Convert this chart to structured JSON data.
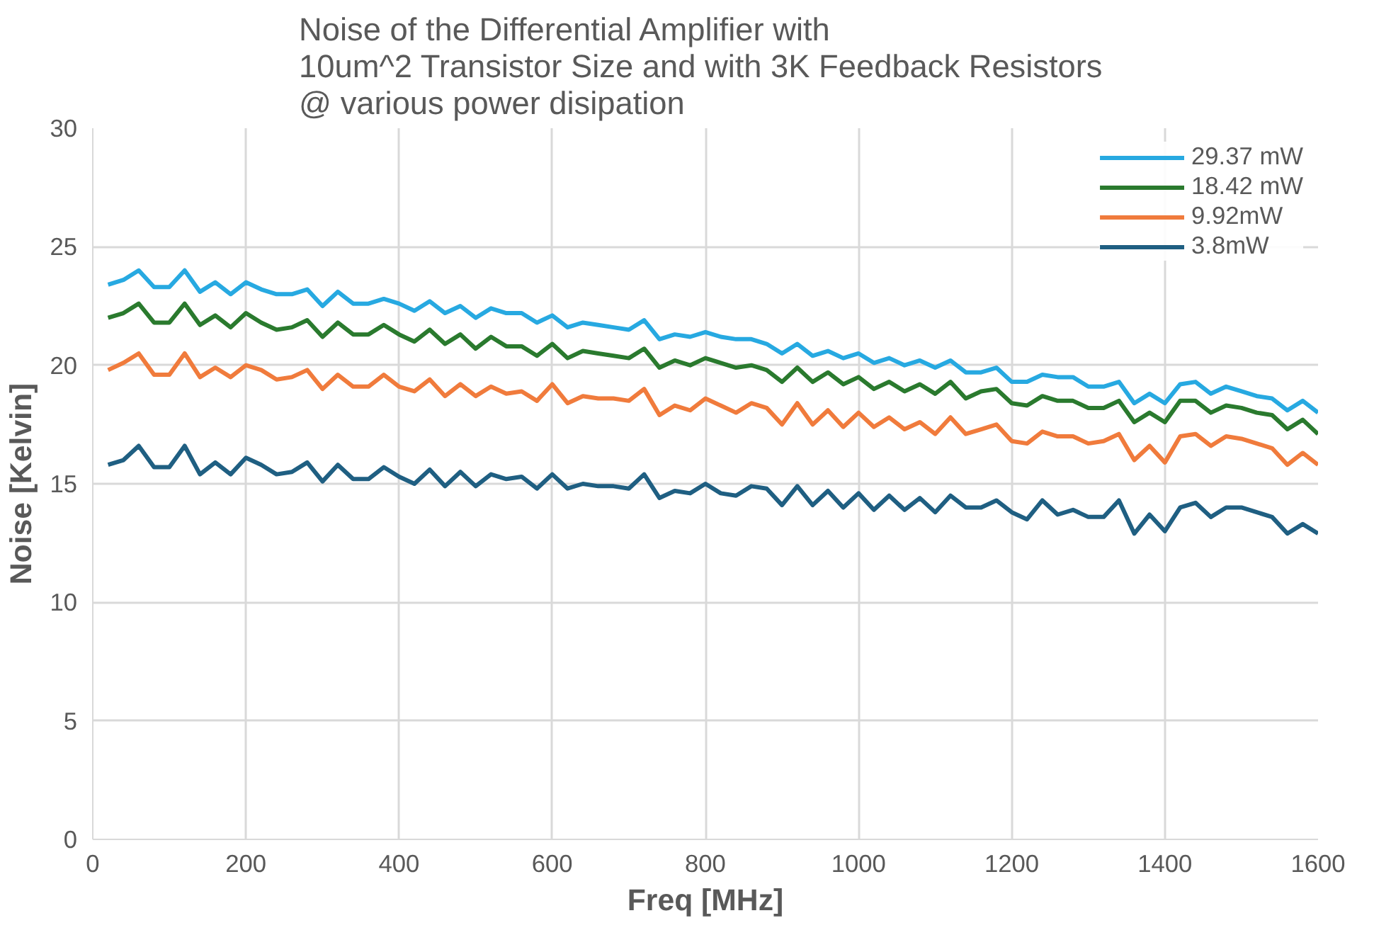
{
  "chart_data": {
    "type": "line",
    "title": "Noise of the Differential Amplifier with\n10um^2 Transistor Size and  with 3K Feedback Resistors\n@ various power disipation",
    "xlabel": "Freq [MHz]",
    "ylabel": "Noise [Kelvin]",
    "x": [
      20,
      40,
      60,
      80,
      100,
      120,
      140,
      160,
      180,
      200,
      220,
      240,
      260,
      280,
      300,
      320,
      340,
      360,
      380,
      400,
      420,
      440,
      460,
      480,
      500,
      520,
      540,
      560,
      580,
      600,
      620,
      640,
      660,
      680,
      700,
      720,
      740,
      760,
      780,
      800,
      820,
      840,
      860,
      880,
      900,
      920,
      940,
      960,
      980,
      1000,
      1020,
      1040,
      1060,
      1080,
      1100,
      1120,
      1140,
      1160,
      1180,
      1200,
      1220,
      1240,
      1260,
      1280,
      1300,
      1320,
      1340,
      1360,
      1380,
      1400,
      1420,
      1440,
      1460,
      1480,
      1500,
      1520,
      1540,
      1560,
      1580,
      1600
    ],
    "series": [
      {
        "name": "29.37 mW",
        "color": "#27a9e1",
        "values": [
          23.4,
          23.6,
          24.0,
          23.3,
          23.3,
          24.0,
          23.1,
          23.5,
          23.0,
          23.5,
          23.2,
          23.0,
          23.0,
          23.2,
          22.5,
          23.1,
          22.6,
          22.6,
          22.8,
          22.6,
          22.3,
          22.7,
          22.2,
          22.5,
          22.0,
          22.4,
          22.2,
          22.2,
          21.8,
          22.1,
          21.6,
          21.8,
          21.7,
          21.6,
          21.5,
          21.9,
          21.1,
          21.3,
          21.2,
          21.4,
          21.2,
          21.1,
          21.1,
          20.9,
          20.5,
          20.9,
          20.4,
          20.6,
          20.3,
          20.5,
          20.1,
          20.3,
          20.0,
          20.2,
          19.9,
          20.2,
          19.7,
          19.7,
          19.9,
          19.3,
          19.3,
          19.6,
          19.5,
          19.5,
          19.1,
          19.1,
          19.3,
          18.4,
          18.8,
          18.4,
          19.2,
          19.3,
          18.8,
          19.1,
          18.9,
          18.7,
          18.6,
          18.1,
          18.5,
          18.0
        ]
      },
      {
        "name": "18.42 mW",
        "color": "#2a7a2e",
        "values": [
          22.0,
          22.2,
          22.6,
          21.8,
          21.8,
          22.6,
          21.7,
          22.1,
          21.6,
          22.2,
          21.8,
          21.5,
          21.6,
          21.9,
          21.2,
          21.8,
          21.3,
          21.3,
          21.7,
          21.3,
          21.0,
          21.5,
          20.9,
          21.3,
          20.7,
          21.2,
          20.8,
          20.8,
          20.4,
          20.9,
          20.3,
          20.6,
          20.5,
          20.4,
          20.3,
          20.7,
          19.9,
          20.2,
          20.0,
          20.3,
          20.1,
          19.9,
          20.0,
          19.8,
          19.3,
          19.9,
          19.3,
          19.7,
          19.2,
          19.5,
          19.0,
          19.3,
          18.9,
          19.2,
          18.8,
          19.3,
          18.6,
          18.9,
          19.0,
          18.4,
          18.3,
          18.7,
          18.5,
          18.5,
          18.2,
          18.2,
          18.5,
          17.6,
          18.0,
          17.6,
          18.5,
          18.5,
          18.0,
          18.3,
          18.2,
          18.0,
          17.9,
          17.3,
          17.7,
          17.1
        ]
      },
      {
        "name": "9.92mW",
        "color": "#f07b3c",
        "values": [
          19.8,
          20.1,
          20.5,
          19.6,
          19.6,
          20.5,
          19.5,
          19.9,
          19.5,
          20.0,
          19.8,
          19.4,
          19.5,
          19.8,
          19.0,
          19.6,
          19.1,
          19.1,
          19.6,
          19.1,
          18.9,
          19.4,
          18.7,
          19.2,
          18.7,
          19.1,
          18.8,
          18.9,
          18.5,
          19.2,
          18.4,
          18.7,
          18.6,
          18.6,
          18.5,
          19.0,
          17.9,
          18.3,
          18.1,
          18.6,
          18.3,
          18.0,
          18.4,
          18.2,
          17.5,
          18.4,
          17.5,
          18.1,
          17.4,
          18.0,
          17.4,
          17.8,
          17.3,
          17.6,
          17.1,
          17.8,
          17.1,
          17.3,
          17.5,
          16.8,
          16.7,
          17.2,
          17.0,
          17.0,
          16.7,
          16.8,
          17.1,
          16.0,
          16.6,
          15.9,
          17.0,
          17.1,
          16.6,
          17.0,
          16.9,
          16.7,
          16.5,
          15.8,
          16.3,
          15.8
        ]
      },
      {
        "name": "3.8mW",
        "color": "#1f5f82",
        "values": [
          15.8,
          16.0,
          16.6,
          15.7,
          15.7,
          16.6,
          15.4,
          15.9,
          15.4,
          16.1,
          15.8,
          15.4,
          15.5,
          15.9,
          15.1,
          15.8,
          15.2,
          15.2,
          15.7,
          15.3,
          15.0,
          15.6,
          14.9,
          15.5,
          14.9,
          15.4,
          15.2,
          15.3,
          14.8,
          15.4,
          14.8,
          15.0,
          14.9,
          14.9,
          14.8,
          15.4,
          14.4,
          14.7,
          14.6,
          15.0,
          14.6,
          14.5,
          14.9,
          14.8,
          14.1,
          14.9,
          14.1,
          14.7,
          14.0,
          14.6,
          13.9,
          14.5,
          13.9,
          14.4,
          13.8,
          14.5,
          14.0,
          14.0,
          14.3,
          13.8,
          13.5,
          14.3,
          13.7,
          13.9,
          13.6,
          13.6,
          14.3,
          12.9,
          13.7,
          13.0,
          14.0,
          14.2,
          13.6,
          14.0,
          14.0,
          13.8,
          13.6,
          12.9,
          13.3,
          12.9
        ]
      }
    ],
    "xlim": [
      0,
      1600
    ],
    "xticks": [
      0,
      200,
      400,
      600,
      800,
      1000,
      1200,
      1400,
      1600
    ],
    "ylim": [
      0,
      30
    ],
    "yticks": [
      0,
      5,
      10,
      15,
      20,
      25,
      30
    ],
    "grid": true,
    "legend": "top right",
    "marker": "none",
    "line_style": "solid"
  }
}
